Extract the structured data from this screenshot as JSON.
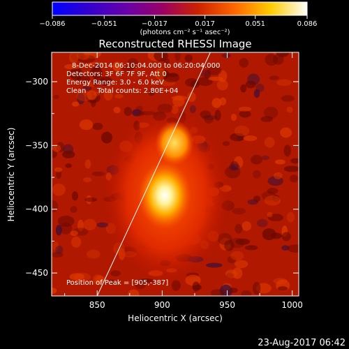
{
  "colorbar": {
    "ticks": [
      "−0.086",
      "−0.051",
      "−0.017",
      "0.017",
      "0.051",
      "0.086"
    ],
    "tick_values": [
      -0.086,
      -0.051,
      -0.017,
      0.017,
      0.051,
      0.086
    ],
    "unit_label": "(photons cm⁻² s⁻¹ asec⁻²)",
    "colors": [
      "#0000ff",
      "#3300cc",
      "#6600aa",
      "#990066",
      "#cc2200",
      "#ff6600",
      "#ffcc00",
      "#ffffff"
    ]
  },
  "chart_data": {
    "type": "heatmap",
    "title": "Reconstructed RHESSI Image",
    "xlabel": "Heliocentric X (arcsec)",
    "ylabel": "Heliocentric Y (arcsec)",
    "xlim": [
      815,
      1005
    ],
    "ylim": [
      -468,
      -277
    ],
    "x_ticks": [
      850,
      900,
      950,
      1000
    ],
    "y_ticks": [
      -300,
      -350,
      -400,
      -450
    ],
    "peak": [
      905,
      -387
    ],
    "limb_line": [
      [
        850,
        -468
      ],
      [
        937,
        -277
      ]
    ],
    "annotations": {
      "time": "8-Dec-2014 06:10:04.000 to 06:20:04.000",
      "detectors": "Detectors: 3F 6F 7F 9F, Att 0",
      "energy": "Energy Range: 3.0 - 6.0 keV",
      "clean": "Clean     Total counts: 2.80E+04",
      "peak_text": "Position of Peak = [905,-387]"
    }
  },
  "footer": {
    "date": "23-Aug-2017 06:42"
  }
}
